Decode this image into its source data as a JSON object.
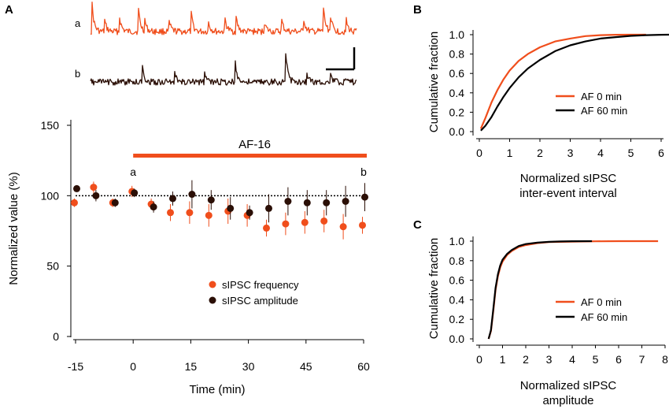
{
  "colors": {
    "frequency": "#f04e1c",
    "amplitude": "#2b0f06",
    "af0": "#f04e1c",
    "af60": "#000000"
  },
  "traces": {
    "a_label": "a",
    "b_label": "b"
  },
  "chart_data": [
    {
      "panel": "A",
      "type": "scatter",
      "xlabel": "Time (min)",
      "ylabel": "Normalized value (%)",
      "xlim": [
        -16,
        61
      ],
      "ylim": [
        0,
        160
      ],
      "xticks": [
        "-15",
        "0",
        "15",
        "30",
        "45",
        "60"
      ],
      "yticks": [
        "0",
        "50",
        "100",
        "150"
      ],
      "reference_line": 100,
      "treatment_bar": {
        "label": "AF-16",
        "start": 0,
        "end": 60
      },
      "markers": [
        {
          "label": "a",
          "x": 0
        },
        {
          "label": "b",
          "x": 60
        }
      ],
      "series": [
        {
          "name": "sIPSC frequency",
          "x": [
            -15,
            -10,
            -5,
            0,
            5,
            10,
            15,
            20,
            25,
            30,
            35,
            40,
            45,
            50,
            55,
            60
          ],
          "values": [
            95,
            106,
            95,
            103,
            94,
            88,
            88,
            86,
            89,
            86,
            77,
            80,
            81,
            82,
            78,
            79
          ],
          "errors": [
            3,
            4,
            3,
            4,
            4,
            6,
            8,
            8,
            9,
            8,
            6,
            8,
            8,
            8,
            9,
            6
          ]
        },
        {
          "name": "sIPSC amplitude",
          "x": [
            -15,
            -10,
            -5,
            0,
            5,
            10,
            15,
            20,
            25,
            30,
            35,
            40,
            45,
            50,
            55,
            60
          ],
          "values": [
            105,
            100,
            95,
            102,
            92,
            98,
            101,
            97,
            91,
            88,
            91,
            96,
            95,
            95,
            96,
            99
          ],
          "errors": [
            2,
            4,
            3,
            3,
            4,
            5,
            10,
            7,
            8,
            5,
            10,
            10,
            9,
            9,
            11,
            10
          ]
        }
      ]
    },
    {
      "panel": "B",
      "type": "line",
      "xlabel": "Normalized sIPSC inter-event interval",
      "xlabel_lines": [
        "Normalized sIPSC",
        "inter-event interval"
      ],
      "ylabel": "Cumulative fraction",
      "xlim": [
        -0.2,
        6.4
      ],
      "ylim": [
        -0.05,
        1.08
      ],
      "xticks": [
        "0",
        "1",
        "2",
        "3",
        "4",
        "5",
        "6"
      ],
      "yticks": [
        "0.0",
        "0.2",
        "0.4",
        "0.6",
        "0.8",
        "1.0"
      ],
      "series": [
        {
          "name": "AF 0 min",
          "x": [
            0.05,
            0.2,
            0.4,
            0.6,
            0.8,
            1.0,
            1.3,
            1.6,
            2.0,
            2.5,
            3.0,
            3.5,
            4.0,
            4.5,
            5.0,
            5.5
          ],
          "values": [
            0.03,
            0.14,
            0.3,
            0.43,
            0.54,
            0.63,
            0.73,
            0.8,
            0.87,
            0.93,
            0.96,
            0.985,
            0.995,
            0.999,
            1.0,
            1.0
          ]
        },
        {
          "name": "AF 60 min",
          "x": [
            0.05,
            0.2,
            0.4,
            0.6,
            0.8,
            1.0,
            1.3,
            1.6,
            2.0,
            2.5,
            3.0,
            3.5,
            4.0,
            4.5,
            5.0,
            5.5,
            6.0,
            6.3
          ],
          "values": [
            0.01,
            0.06,
            0.15,
            0.26,
            0.36,
            0.45,
            0.56,
            0.65,
            0.74,
            0.83,
            0.89,
            0.93,
            0.96,
            0.975,
            0.988,
            0.995,
            0.999,
            1.0
          ]
        }
      ]
    },
    {
      "panel": "C",
      "type": "line",
      "xlabel": "Normalized sIPSC amplitude",
      "xlabel_lines": [
        "Normalized sIPSC",
        "amplitude"
      ],
      "ylabel": "Cumulative fraction",
      "xlim": [
        -0.2,
        8.1
      ],
      "ylim": [
        -0.05,
        1.08
      ],
      "xticks": [
        "0",
        "1",
        "2",
        "3",
        "4",
        "5",
        "6",
        "7",
        "8"
      ],
      "yticks": [
        "0.0",
        "0.2",
        "0.4",
        "0.6",
        "0.8",
        "1.0"
      ],
      "series": [
        {
          "name": "AF 0 min",
          "x": [
            0.4,
            0.5,
            0.6,
            0.7,
            0.8,
            0.9,
            1.0,
            1.2,
            1.4,
            1.7,
            2.0,
            2.5,
            3.0,
            4.0,
            5.0,
            6.0,
            7.0,
            7.7
          ],
          "values": [
            0.0,
            0.08,
            0.28,
            0.5,
            0.64,
            0.73,
            0.79,
            0.86,
            0.9,
            0.94,
            0.96,
            0.98,
            0.99,
            0.995,
            0.998,
            1.0,
            1.0,
            1.0
          ]
        },
        {
          "name": "AF 60 min",
          "x": [
            0.4,
            0.5,
            0.6,
            0.7,
            0.8,
            0.9,
            1.0,
            1.2,
            1.4,
            1.7,
            2.0,
            2.5,
            3.0,
            3.5,
            4.0,
            4.85
          ],
          "values": [
            0.0,
            0.09,
            0.3,
            0.52,
            0.66,
            0.75,
            0.81,
            0.87,
            0.91,
            0.95,
            0.97,
            0.985,
            0.993,
            0.997,
            0.999,
            1.0
          ]
        }
      ]
    }
  ]
}
